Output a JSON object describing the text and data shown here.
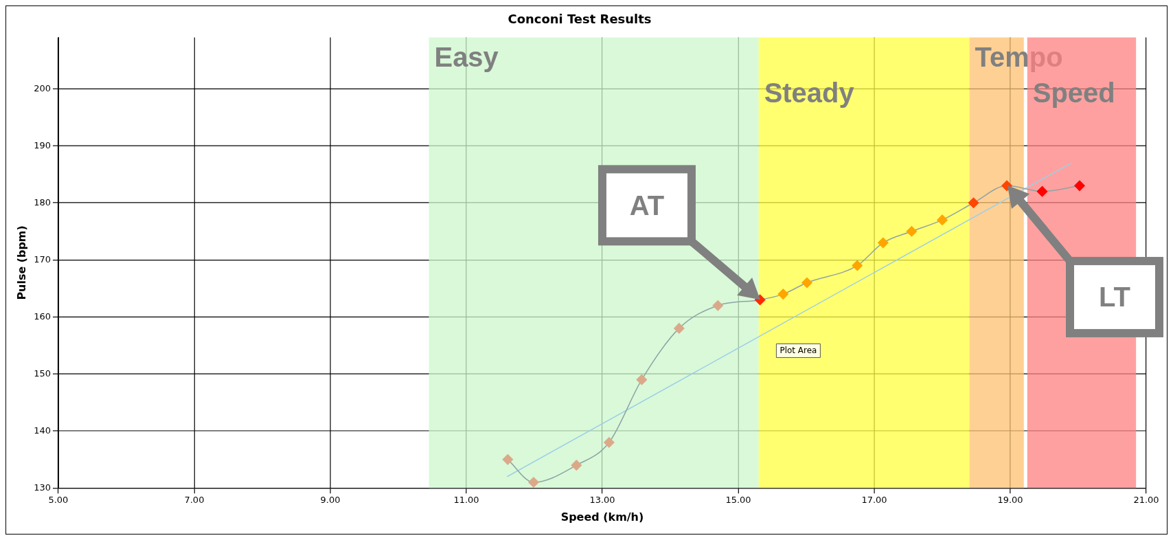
{
  "chart_data": {
    "type": "scatter",
    "title": "Conconi Test Results",
    "xlabel": "Speed (km/h)",
    "ylabel": "Pulse (bpm)",
    "xlim": [
      5,
      21
    ],
    "xticks": [
      {
        "value": 5,
        "label": "5.00"
      },
      {
        "value": 7,
        "label": "7.00"
      },
      {
        "value": 9,
        "label": "9.00"
      },
      {
        "value": 11,
        "label": "11.00"
      },
      {
        "value": 13,
        "label": "13.00"
      },
      {
        "value": 15,
        "label": "15.00"
      },
      {
        "value": 17,
        "label": "17.00"
      },
      {
        "value": 19,
        "label": "19.00"
      },
      {
        "value": 21,
        "label": "21.00"
      }
    ],
    "ylim": [
      130,
      209
    ],
    "yticks": [
      130,
      140,
      150,
      160,
      170,
      180,
      190,
      200
    ],
    "grid": true,
    "legend": false,
    "series": [
      {
        "type": "line",
        "marker": "diamond",
        "color": "#8fa3a3",
        "x": [
          11.61,
          11.99,
          12.62,
          13.1,
          13.58,
          14.13,
          14.7,
          15.32,
          15.66,
          16.01,
          16.75,
          17.13,
          17.55,
          18.0,
          18.46,
          18.95,
          19.47,
          20.02
        ],
        "values": [
          135,
          131,
          134,
          138,
          149,
          158,
          162,
          163,
          164,
          166,
          169,
          173,
          175,
          177,
          180,
          183,
          182,
          183
        ],
        "colors": [
          "#dba98a",
          "#dba98a",
          "#dba98a",
          "#dba98a",
          "#dba98a",
          "#dba98a",
          "#dba98a",
          "#ff2a00",
          "#ffa500",
          "#ffa500",
          "#ffa500",
          "#ffa500",
          "#ffa500",
          "#ffa500",
          "#ff4500",
          "#ff4500",
          "#ff0000",
          "#ff0000"
        ]
      },
      {
        "type": "line",
        "marker": "none",
        "color": "#9ccfe6",
        "x": [
          11.6,
          19.9
        ],
        "values": [
          132,
          187
        ]
      }
    ],
    "bands": [
      {
        "axis": "x",
        "from": 10.45,
        "to": 15.3,
        "label": "Easy",
        "color": "#ccf7cc"
      },
      {
        "axis": "x",
        "from": 15.3,
        "to": 18.4,
        "label": "Steady",
        "color": "#ffff40"
      },
      {
        "axis": "x",
        "from": 18.4,
        "to": 19.2,
        "label": "Tempo",
        "color": "#ffc070"
      },
      {
        "axis": "x",
        "from": 19.25,
        "to": 20.85,
        "label": "Speed",
        "color": "#ff8080"
      }
    ],
    "annotations": [
      "AT",
      "LT",
      "Plot Area"
    ]
  }
}
